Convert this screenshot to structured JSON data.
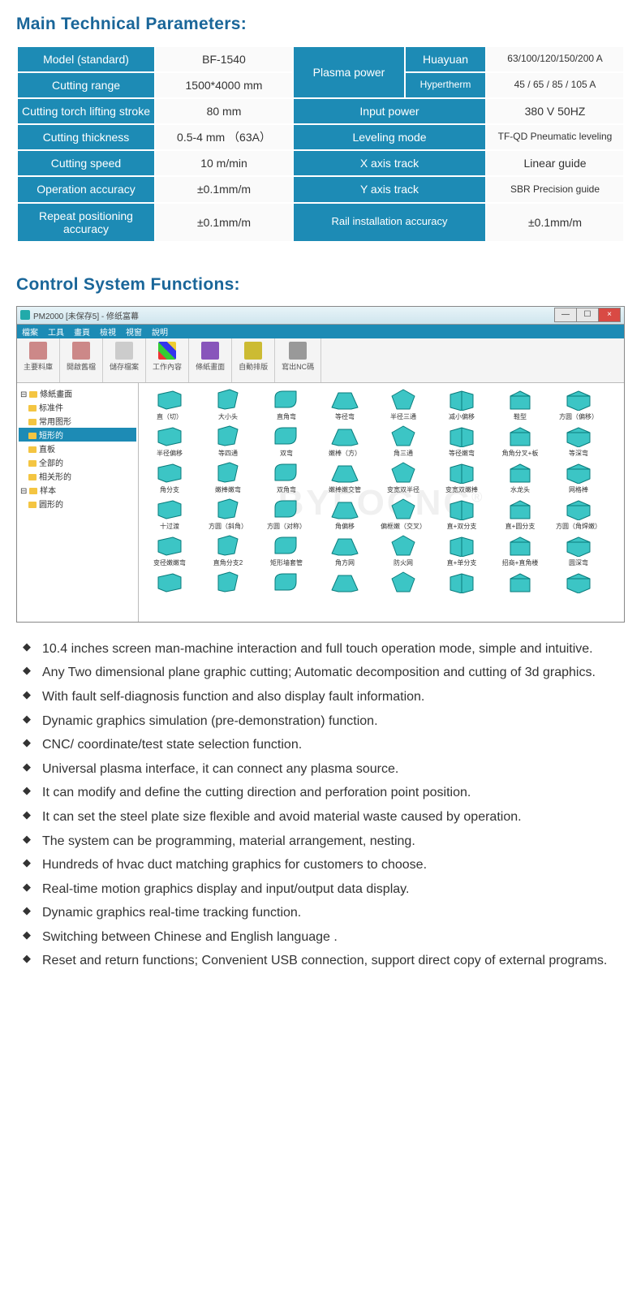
{
  "title_params": "Main Technical Parameters:",
  "title_control": "Control System Functions:",
  "theme": {
    "header_bg": "#1d8bb5",
    "header_fg": "#ffffff",
    "cell_bg": "#fafafa",
    "title_color": "#1a6699"
  },
  "spec": {
    "model_h": "Model (standard)",
    "model_v": "BF-1540",
    "range_h": "Cutting range",
    "range_v": "1500*4000 mm",
    "lift_h": "Cutting torch lifting stroke",
    "lift_v": "80 mm",
    "thick_h": "Cutting thickness",
    "thick_v": "0.5-4 mm （63A）",
    "speed_h": "Cutting speed",
    "speed_v": "10 m/min",
    "opacc_h": "Operation accuracy",
    "opacc_v": "±0.1mm/m",
    "repacc_h": "Repeat positioning accuracy",
    "repacc_v": "±0.1mm/m",
    "plasma_h": "Plasma power",
    "huayuan_h": "Huayuan",
    "huayuan_v": "63/100/120/150/200 A",
    "hyper_h": "Hypertherm",
    "hyper_v": "45 / 65 / 85 / 105 A",
    "input_h": "Input power",
    "input_v": "380 V 50HZ",
    "level_h": "Leveling mode",
    "level_v": "TF-QD Pneumatic leveling",
    "xaxis_h": "X axis track",
    "xaxis_v": "Linear guide",
    "yaxis_h": "Y axis track",
    "yaxis_v": "SBR Precision guide",
    "rail_h": "Rail installation accuracy",
    "rail_v": "±0.1mm/m"
  },
  "software": {
    "title": "PM2000 [未保存5] - 修纸富幕",
    "menu": [
      "檔案",
      "工具",
      "畫頁",
      "檢視",
      "視窗",
      "說明"
    ],
    "toolbar": [
      {
        "label": "主要料庫",
        "color": "#c88"
      },
      {
        "label": "開啟舊檔",
        "color": "#c88"
      },
      {
        "label": "儲存檔案",
        "color": "#ccc"
      },
      {
        "label": "工作內容",
        "color": "#3c9"
      },
      {
        "label": "條紙畫面",
        "color": "#85b"
      },
      {
        "label": "自動排版",
        "color": "#cb3"
      },
      {
        "label": "寫出NC碼",
        "color": "#999"
      }
    ],
    "tree": [
      {
        "t": "條紙畫面",
        "root": true
      },
      {
        "t": "标准件"
      },
      {
        "t": "常用图形"
      },
      {
        "t": "短形的",
        "sel": true
      },
      {
        "t": "直板"
      },
      {
        "t": "全部的"
      },
      {
        "t": "相关形的"
      },
      {
        "t": "样本",
        "root": true
      },
      {
        "t": "圆形的"
      }
    ],
    "grid": [
      [
        "直（切）",
        "大小头",
        "直角弯",
        "等径弯",
        "半径三通",
        "减小偏移",
        "鞋型",
        "方圆（偏移）"
      ],
      [
        "半径偏移",
        "等四通",
        "双弯",
        "嫩棒（方）",
        "角三通",
        "等径嫩弯",
        "角角分叉+板",
        "等深弯"
      ],
      [
        "角分支",
        "嫩棒嫩弯",
        "双角弯",
        "嫩棒嫩交管",
        "变宽双半径",
        "变宽双嫩棒",
        "水龙头",
        "网格棒"
      ],
      [
        "十过渡",
        "方圆（斜角）",
        "方圆（对称）",
        "角偏移",
        "偏框嫩（交叉）",
        "直+双分支",
        "直+圆分支",
        "方圆（角焊嫩）"
      ],
      [
        "变径嫩嫩弯",
        "直角分支2",
        "矩形墙套管",
        "角方网",
        "防火网",
        "直+单分支",
        "招商+直角楼",
        "圆深弯"
      ],
      [
        "",
        "",
        "",
        "",
        "",
        "",
        "",
        ""
      ]
    ],
    "shape_fill": "#3cc5c5",
    "shape_stroke": "#0a7c7c"
  },
  "bullets": [
    "10.4 inches screen man-machine interaction and full touch operation mode, simple and intuitive.",
    "Any Two dimensional plane graphic cutting; Automatic decomposition and cutting of 3d graphics.",
    "With fault self-diagnosis function and also display fault information.",
    "Dynamic graphics simulation (pre-demonstration) function.",
    "CNC/ coordinate/test state selection function.",
    "Universal plasma interface, it can connect any plasma source.",
    "It can modify and define the cutting direction and perforation point position.",
    "It can set the steel plate size flexible and avoid material waste caused by operation.",
    "The system can be programming, material arrangement, nesting.",
    "Hundreds of hvac duct matching graphics for customers to choose.",
    "Real-time motion graphics display and input/output data display.",
    "Dynamic graphics real-time tracking function.",
    "Switching between Chinese and English language .",
    "Reset and return functions; Convenient USB connection, support direct copy of external programs."
  ],
  "watermark": "BYFOCNC"
}
